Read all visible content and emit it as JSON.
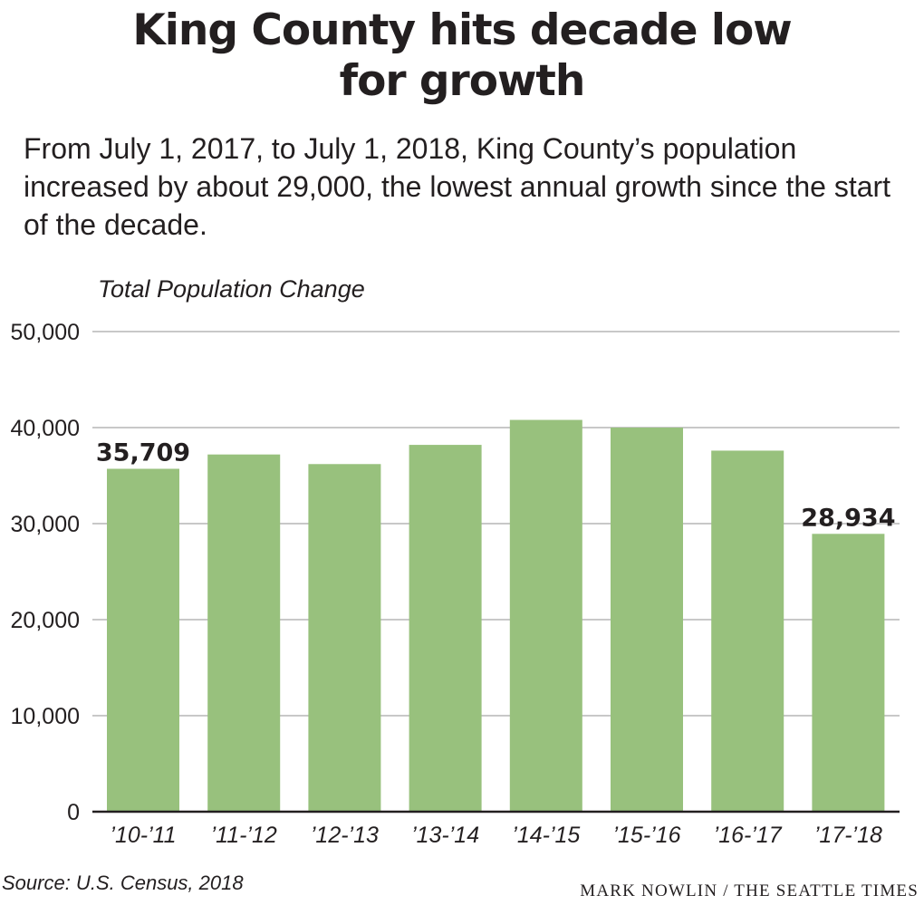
{
  "header": {
    "title_line1": "King County hits decade low",
    "title_line2": "for growth",
    "subtitle": "From July 1, 2017, to July 1, 2018, King County’s population increased by about 29,000, the lowest annual growth since the start of the decade."
  },
  "chart_data": {
    "type": "bar",
    "ylabel": "Total Population Change",
    "xlabel": "",
    "categories": [
      "’10-’11",
      "’11-’12",
      "’12-’13",
      "’13-’14",
      "’14-’15",
      "’15-’16",
      "’16-’17",
      "’17-’18"
    ],
    "values": [
      35709,
      37200,
      36200,
      38200,
      40800,
      40000,
      37600,
      28934
    ],
    "data_labels": [
      {
        "index": 0,
        "text": "35,709"
      },
      {
        "index": 7,
        "text": "28,934"
      }
    ],
    "ylim": [
      0,
      50000
    ],
    "yticks": [
      0,
      10000,
      20000,
      30000,
      40000,
      50000
    ],
    "ytick_labels": [
      "0",
      "10,000",
      "20,000",
      "30,000",
      "40,000",
      "50,000"
    ],
    "grid": true,
    "legend": false,
    "bar_color": "#98c17d",
    "grid_color": "#c8c8c8",
    "axis_color": "#231f20"
  },
  "footer": {
    "source": "Source: U.S. Census, 2018",
    "credit": "Mark Nowlin / The Seattle Times"
  }
}
